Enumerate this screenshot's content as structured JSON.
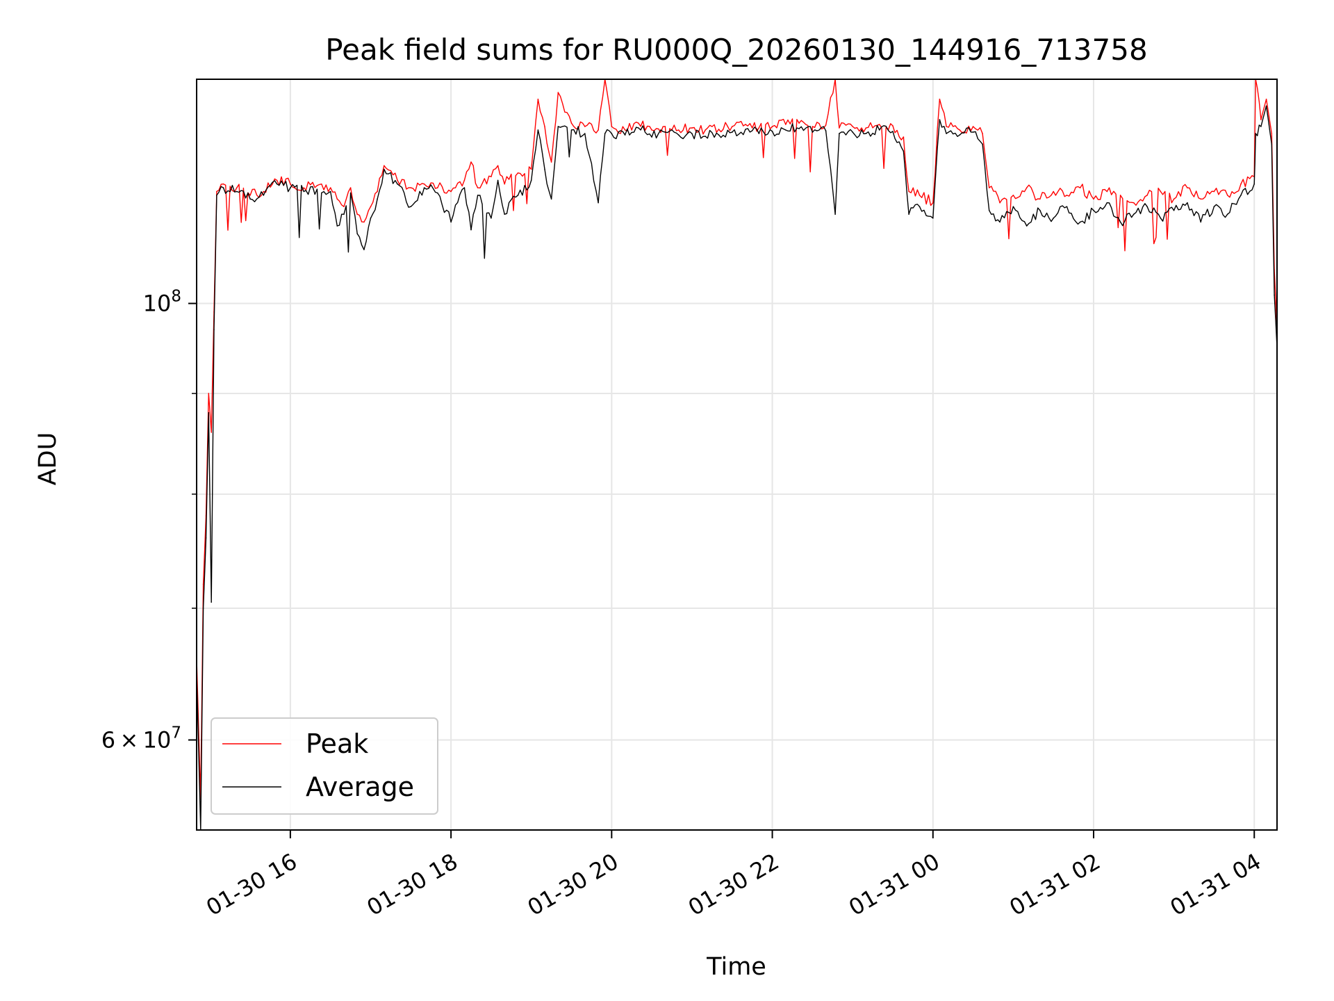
{
  "chart_data": {
    "type": "line",
    "title": "Peak field sums for RU000Q_20260130_144916_713758",
    "xlabel": "Time",
    "ylabel": "ADU",
    "y_scale": "log",
    "ylim": [
      54000000,
      130000000
    ],
    "xlim": [
      "2026-01-30 14:50",
      "2026-01-31 04:17"
    ],
    "x_ticks": [
      {
        "value": "2026-01-30 16:00",
        "label": "01-30 16"
      },
      {
        "value": "2026-01-30 18:00",
        "label": "01-30 18"
      },
      {
        "value": "2026-01-30 20:00",
        "label": "01-30 20"
      },
      {
        "value": "2026-01-30 22:00",
        "label": "01-30 22"
      },
      {
        "value": "2026-01-31 00:00",
        "label": "01-31 00"
      },
      {
        "value": "2026-01-31 02:00",
        "label": "01-31 02"
      },
      {
        "value": "2026-01-31 04:00",
        "label": "01-31 04"
      }
    ],
    "y_major_ticks": [
      {
        "value": 60000000,
        "mantissa": "6",
        "exponent": "7"
      },
      {
        "value": 100000000,
        "mantissa": "",
        "exponent": "8"
      }
    ],
    "y_minor_ticks": [
      70000000,
      80000000,
      90000000
    ],
    "grid": true,
    "legend_position": "lower-left",
    "series": [
      {
        "name": "Peak",
        "color": "#ff0000",
        "points": [
          [
            "2026-01-30 14:50",
            66000000
          ],
          [
            "2026-01-30 14:53",
            56000000
          ],
          [
            "2026-01-30 14:55",
            72000000
          ],
          [
            "2026-01-30 14:57",
            78000000
          ],
          [
            "2026-01-30 14:59",
            90000000
          ],
          [
            "2026-01-30 15:01",
            86000000
          ],
          [
            "2026-01-30 15:03",
            99000000
          ],
          [
            "2026-01-30 15:05",
            114000000
          ],
          [
            "2026-01-30 15:10",
            115000000
          ],
          [
            "2026-01-30 15:20",
            114500000
          ],
          [
            "2026-01-30 15:30",
            113500000
          ],
          [
            "2026-01-30 15:40",
            114000000
          ],
          [
            "2026-01-30 15:50",
            115500000
          ],
          [
            "2026-01-30 16:00",
            115000000
          ],
          [
            "2026-01-30 16:10",
            114500000
          ],
          [
            "2026-01-30 16:20",
            114800000
          ],
          [
            "2026-01-30 16:30",
            114500000
          ],
          [
            "2026-01-30 16:35",
            113000000
          ],
          [
            "2026-01-30 16:40",
            112000000
          ],
          [
            "2026-01-30 16:45",
            114500000
          ],
          [
            "2026-01-30 16:50",
            111000000
          ],
          [
            "2026-01-30 16:55",
            110000000
          ],
          [
            "2026-01-30 17:00",
            112000000
          ],
          [
            "2026-01-30 17:05",
            114000000
          ],
          [
            "2026-01-30 17:10",
            117500000
          ],
          [
            "2026-01-30 17:20",
            115500000
          ],
          [
            "2026-01-30 17:30",
            114500000
          ],
          [
            "2026-01-30 17:40",
            115000000
          ],
          [
            "2026-01-30 17:50",
            114500000
          ],
          [
            "2026-01-30 18:00",
            114000000
          ],
          [
            "2026-01-30 18:10",
            115500000
          ],
          [
            "2026-01-30 18:15",
            118000000
          ],
          [
            "2026-01-30 18:20",
            114500000
          ],
          [
            "2026-01-30 18:30",
            116000000
          ],
          [
            "2026-01-30 18:35",
            117500000
          ],
          [
            "2026-01-30 18:40",
            115000000
          ],
          [
            "2026-01-30 18:50",
            116500000
          ],
          [
            "2026-01-30 19:00",
            117000000
          ],
          [
            "2026-01-30 19:05",
            127000000
          ],
          [
            "2026-01-30 19:10",
            123000000
          ],
          [
            "2026-01-30 19:15",
            118000000
          ],
          [
            "2026-01-30 19:20",
            128000000
          ],
          [
            "2026-01-30 19:30",
            123500000
          ],
          [
            "2026-01-30 19:40",
            123000000
          ],
          [
            "2026-01-30 19:50",
            122500000
          ],
          [
            "2026-01-30 19:55",
            130000000
          ],
          [
            "2026-01-30 20:00",
            123000000
          ],
          [
            "2026-01-30 20:10",
            122500000
          ],
          [
            "2026-01-30 20:20",
            123500000
          ],
          [
            "2026-01-30 20:30",
            122500000
          ],
          [
            "2026-01-30 20:40",
            123000000
          ],
          [
            "2026-01-30 20:50",
            122500000
          ],
          [
            "2026-01-30 21:00",
            122800000
          ],
          [
            "2026-01-30 21:10",
            122500000
          ],
          [
            "2026-01-30 21:20",
            122600000
          ],
          [
            "2026-01-30 21:30",
            123000000
          ],
          [
            "2026-01-30 21:40",
            123300000
          ],
          [
            "2026-01-30 21:50",
            122800000
          ],
          [
            "2026-01-30 22:00",
            123000000
          ],
          [
            "2026-01-30 22:10",
            123300000
          ],
          [
            "2026-01-30 22:20",
            123500000
          ],
          [
            "2026-01-30 22:30",
            123000000
          ],
          [
            "2026-01-30 22:40",
            123200000
          ],
          [
            "2026-01-30 22:47",
            130000000
          ],
          [
            "2026-01-30 22:50",
            122800000
          ],
          [
            "2026-01-30 23:00",
            123000000
          ],
          [
            "2026-01-30 23:10",
            122800000
          ],
          [
            "2026-01-30 23:20",
            123300000
          ],
          [
            "2026-01-30 23:30",
            123100000
          ],
          [
            "2026-01-30 23:38",
            121500000
          ],
          [
            "2026-01-30 23:42",
            114000000
          ],
          [
            "2026-01-30 23:50",
            113500000
          ],
          [
            "2026-01-31 00:00",
            112500000
          ],
          [
            "2026-01-31 00:05",
            127000000
          ],
          [
            "2026-01-31 00:10",
            123000000
          ],
          [
            "2026-01-31 00:20",
            122500000
          ],
          [
            "2026-01-31 00:30",
            123000000
          ],
          [
            "2026-01-31 00:37",
            122000000
          ],
          [
            "2026-01-31 00:42",
            114500000
          ],
          [
            "2026-01-31 00:50",
            112500000
          ],
          [
            "2026-01-31 01:00",
            113500000
          ],
          [
            "2026-01-31 01:10",
            114500000
          ],
          [
            "2026-01-31 01:20",
            113000000
          ],
          [
            "2026-01-31 01:30",
            114000000
          ],
          [
            "2026-01-31 01:40",
            113500000
          ],
          [
            "2026-01-31 01:50",
            114500000
          ],
          [
            "2026-01-31 02:00",
            113000000
          ],
          [
            "2026-01-31 02:10",
            114000000
          ],
          [
            "2026-01-31 02:20",
            113500000
          ],
          [
            "2026-01-31 02:30",
            112500000
          ],
          [
            "2026-01-31 02:40",
            113500000
          ],
          [
            "2026-01-31 02:50",
            114000000
          ],
          [
            "2026-01-31 03:00",
            113000000
          ],
          [
            "2026-01-31 03:10",
            114500000
          ],
          [
            "2026-01-31 03:20",
            113000000
          ],
          [
            "2026-01-31 03:30",
            114000000
          ],
          [
            "2026-01-31 03:40",
            113500000
          ],
          [
            "2026-01-31 03:50",
            115000000
          ],
          [
            "2026-01-31 04:00",
            116000000
          ],
          [
            "2026-01-31 04:01",
            130000000
          ],
          [
            "2026-01-31 04:05",
            124000000
          ],
          [
            "2026-01-31 04:09",
            127000000
          ],
          [
            "2026-01-31 04:13",
            122000000
          ],
          [
            "2026-01-31 04:15",
            104000000
          ],
          [
            "2026-01-31 04:17",
            97000000
          ]
        ]
      },
      {
        "name": "Average",
        "color": "#000000",
        "points": [
          [
            "2026-01-30 14:50",
            65000000
          ],
          [
            "2026-01-30 14:53",
            54000000
          ],
          [
            "2026-01-30 14:55",
            70000000
          ],
          [
            "2026-01-30 14:57",
            76000000
          ],
          [
            "2026-01-30 14:59",
            88000000
          ],
          [
            "2026-01-30 15:01",
            70500000
          ],
          [
            "2026-01-30 15:03",
            97000000
          ],
          [
            "2026-01-30 15:05",
            113500000
          ],
          [
            "2026-01-30 15:10",
            114500000
          ],
          [
            "2026-01-30 15:20",
            114000000
          ],
          [
            "2026-01-30 15:30",
            113000000
          ],
          [
            "2026-01-30 15:40",
            113500000
          ],
          [
            "2026-01-30 15:50",
            115000000
          ],
          [
            "2026-01-30 16:00",
            114500000
          ],
          [
            "2026-01-30 16:10",
            114000000
          ],
          [
            "2026-01-30 16:20",
            114300000
          ],
          [
            "2026-01-30 16:30",
            114000000
          ],
          [
            "2026-01-30 16:35",
            109500000
          ],
          [
            "2026-01-30 16:40",
            111000000
          ],
          [
            "2026-01-30 16:45",
            113800000
          ],
          [
            "2026-01-30 16:50",
            108500000
          ],
          [
            "2026-01-30 16:55",
            106500000
          ],
          [
            "2026-01-30 17:00",
            110500000
          ],
          [
            "2026-01-30 17:05",
            113000000
          ],
          [
            "2026-01-30 17:10",
            117000000
          ],
          [
            "2026-01-30 17:20",
            115000000
          ],
          [
            "2026-01-30 17:30",
            112000000
          ],
          [
            "2026-01-30 17:40",
            114500000
          ],
          [
            "2026-01-30 17:50",
            113800000
          ],
          [
            "2026-01-30 18:00",
            110000000
          ],
          [
            "2026-01-30 18:10",
            114500000
          ],
          [
            "2026-01-30 18:15",
            109000000
          ],
          [
            "2026-01-30 18:20",
            113500000
          ],
          [
            "2026-01-30 18:30",
            110500000
          ],
          [
            "2026-01-30 18:35",
            115500000
          ],
          [
            "2026-01-30 18:40",
            111000000
          ],
          [
            "2026-01-30 18:50",
            113500000
          ],
          [
            "2026-01-30 19:00",
            115500000
          ],
          [
            "2026-01-30 19:05",
            122500000
          ],
          [
            "2026-01-30 19:10",
            117000000
          ],
          [
            "2026-01-30 19:15",
            113000000
          ],
          [
            "2026-01-30 19:20",
            123000000
          ],
          [
            "2026-01-30 19:30",
            122500000
          ],
          [
            "2026-01-30 19:40",
            122000000
          ],
          [
            "2026-01-30 19:50",
            112500000
          ],
          [
            "2026-01-30 19:55",
            122000000
          ],
          [
            "2026-01-30 20:00",
            122000000
          ],
          [
            "2026-01-30 20:10",
            121800000
          ],
          [
            "2026-01-30 20:20",
            122800000
          ],
          [
            "2026-01-30 20:30",
            121500000
          ],
          [
            "2026-01-30 20:40",
            122200000
          ],
          [
            "2026-01-30 20:50",
            121800000
          ],
          [
            "2026-01-30 21:00",
            122000000
          ],
          [
            "2026-01-30 21:10",
            121600000
          ],
          [
            "2026-01-30 21:20",
            121800000
          ],
          [
            "2026-01-30 21:30",
            122200000
          ],
          [
            "2026-01-30 21:40",
            122600000
          ],
          [
            "2026-01-30 21:50",
            122000000
          ],
          [
            "2026-01-30 22:00",
            122300000
          ],
          [
            "2026-01-30 22:10",
            122500000
          ],
          [
            "2026-01-30 22:20",
            122700000
          ],
          [
            "2026-01-30 22:30",
            122200000
          ],
          [
            "2026-01-30 22:40",
            122400000
          ],
          [
            "2026-01-30 22:47",
            111000000
          ],
          [
            "2026-01-30 22:50",
            122000000
          ],
          [
            "2026-01-30 23:00",
            122200000
          ],
          [
            "2026-01-30 23:10",
            122000000
          ],
          [
            "2026-01-30 23:20",
            122500000
          ],
          [
            "2026-01-30 23:30",
            122300000
          ],
          [
            "2026-01-30 23:38",
            119500000
          ],
          [
            "2026-01-30 23:42",
            111000000
          ],
          [
            "2026-01-30 23:50",
            112000000
          ],
          [
            "2026-01-31 00:00",
            110500000
          ],
          [
            "2026-01-31 00:05",
            124000000
          ],
          [
            "2026-01-31 00:10",
            122000000
          ],
          [
            "2026-01-31 00:20",
            121800000
          ],
          [
            "2026-01-31 00:30",
            122200000
          ],
          [
            "2026-01-31 00:37",
            120500000
          ],
          [
            "2026-01-31 00:42",
            111500000
          ],
          [
            "2026-01-31 00:50",
            110000000
          ],
          [
            "2026-01-31 01:00",
            112000000
          ],
          [
            "2026-01-31 01:10",
            109500000
          ],
          [
            "2026-01-31 01:20",
            111500000
          ],
          [
            "2026-01-31 01:30",
            110500000
          ],
          [
            "2026-01-31 01:40",
            112000000
          ],
          [
            "2026-01-31 01:50",
            110000000
          ],
          [
            "2026-01-31 02:00",
            111500000
          ],
          [
            "2026-01-31 02:10",
            112500000
          ],
          [
            "2026-01-31 02:20",
            110000000
          ],
          [
            "2026-01-31 02:30",
            111000000
          ],
          [
            "2026-01-31 02:40",
            112000000
          ],
          [
            "2026-01-31 02:50",
            110500000
          ],
          [
            "2026-01-31 03:00",
            111500000
          ],
          [
            "2026-01-31 03:10",
            112500000
          ],
          [
            "2026-01-31 03:20",
            110000000
          ],
          [
            "2026-01-31 03:30",
            112000000
          ],
          [
            "2026-01-31 03:40",
            111000000
          ],
          [
            "2026-01-31 03:50",
            113500000
          ],
          [
            "2026-01-31 04:00",
            115000000
          ],
          [
            "2026-01-31 04:01",
            122000000
          ],
          [
            "2026-01-31 04:05",
            123000000
          ],
          [
            "2026-01-31 04:09",
            126000000
          ],
          [
            "2026-01-31 04:13",
            120500000
          ],
          [
            "2026-01-31 04:15",
            101000000
          ],
          [
            "2026-01-31 04:17",
            95000000
          ]
        ]
      }
    ]
  }
}
